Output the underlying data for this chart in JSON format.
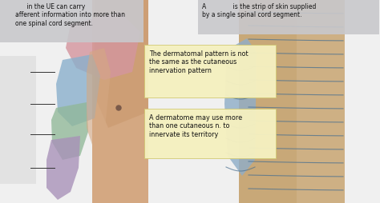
{
  "bg_color": "#f0f0f0",
  "left_box_text": "      in the UE can carry\nafferent information into more than\none spinal cord segment.",
  "right_box_text": "A              is the strip of skin supplied\nby a single spinal cord segment.",
  "center_box1_text": "The dermatomal pattern is not\nthe same as the cutaneous\ninnervation pattern",
  "center_box2_text": "A dermatome may use more\nthan one cutaneous n. to\ninnervate its territory",
  "left_box_bg": "#c8c8cc",
  "right_box_bg": "#c8c8cc",
  "center_box_bg": "#f5f0c0",
  "peach": "#d4a882",
  "skin_light": "#c8956a",
  "pink": "#d4969e",
  "blue": "#8ab0cc",
  "green": "#90b898",
  "purple": "#a890b8",
  "tan_body": "#c8a878",
  "tan_light": "#d4b890",
  "blue_arm_r": "#90aec8",
  "line_color": "#4a7090",
  "label_line_color": "#333333",
  "figsize": [
    4.74,
    2.54
  ],
  "dpi": 100
}
